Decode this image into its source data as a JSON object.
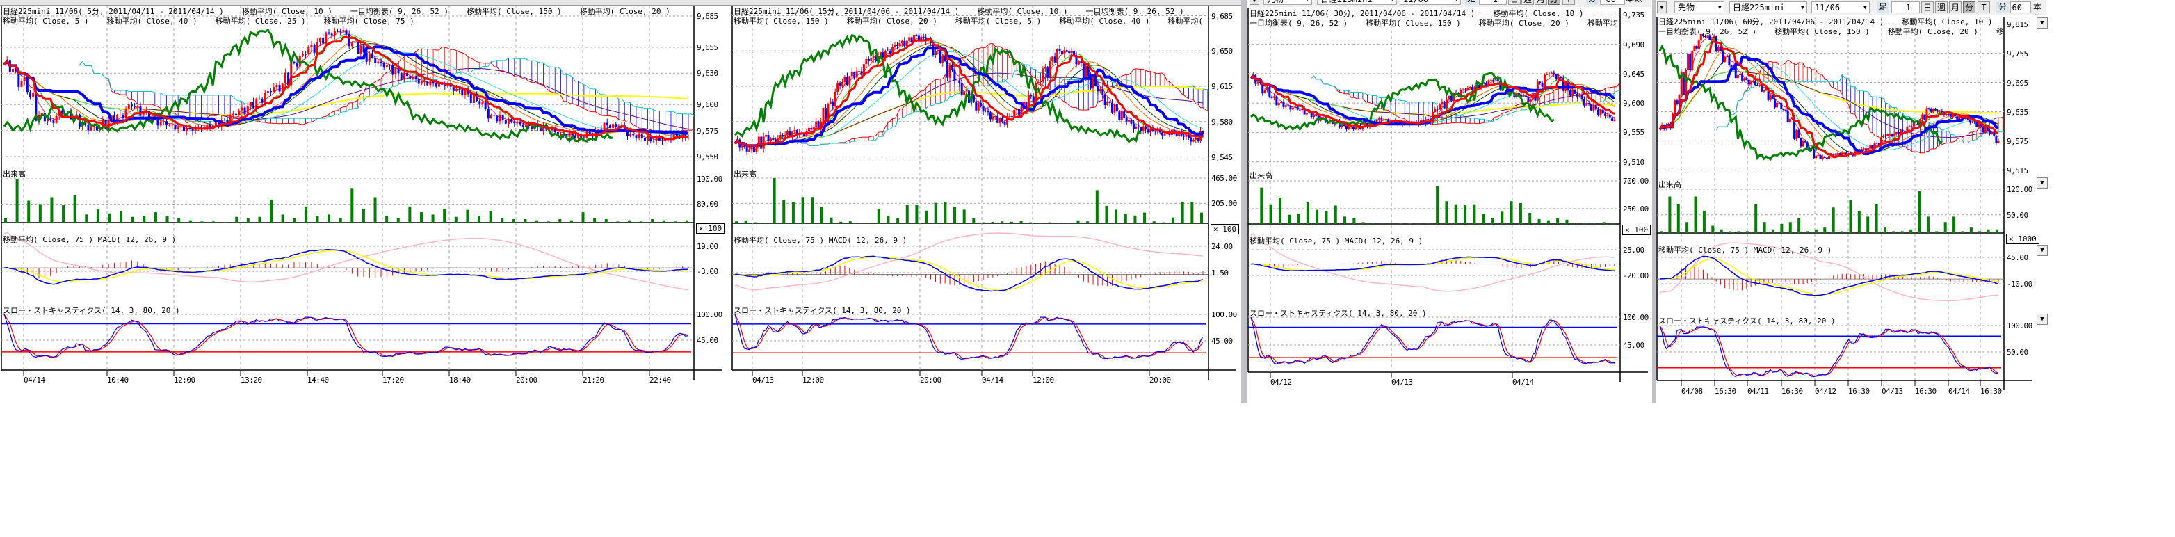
{
  "colors": {
    "up_candle": "#ff0000",
    "down_candle": "#0000ff",
    "tenkan": "#ff0000",
    "kijun": "#0000ff",
    "chikou": "#008000",
    "cloud_a": "#ff0000",
    "cloud_b": "#00cccc",
    "ma5": "#ff3030",
    "ma10": "#00dd00",
    "ma20": "#ff6600",
    "ma25": "#004400",
    "ma40": "#33dddd",
    "ma75": "#5a0a8a",
    "ma150": "#ffff00",
    "volume": "#008000",
    "macd": "#0000ff",
    "signal": "#ffff00",
    "histogram": "#ff0000",
    "macd_ma75": "#ffb6c1",
    "stoch_k": "#0000ff",
    "stoch_d": "#ff0000",
    "overbought_line": "#0000ff",
    "oversold_line": "#ff0000"
  },
  "toolbar": {
    "menu_icon": "dropdown-triangle",
    "market": "先物",
    "product": "日経225mini",
    "contract": "11/06",
    "bar_label": "足",
    "bar_value": "1",
    "buttons": [
      "日",
      "週",
      "月",
      "分",
      "T"
    ],
    "active_button": "分",
    "interval_unit": "分",
    "interval_value": "60",
    "count_label": "本数"
  },
  "panels": [
    {
      "header": {
        "line1": [
          "日経225mini 11/06( 5分, 2011/04/11 - 2011/04/14 )",
          "移動平均( Close, 10 )",
          "一目均衡表( 9, 26, 52 )",
          "移動平均( Close, 150 )",
          "移動平均( Close, 20 )"
        ],
        "line2": [
          "移動平均( Close, 5 )",
          "移動平均( Close, 40 )",
          "移動平均( Close, 25 )",
          "移動平均( Close, 75 )"
        ]
      },
      "volume_label": "出来高",
      "macd_label": "移動平均( Close, 75 )   MACD( 12, 26, 9 )",
      "stoch_label": "スロー・ストキャスティクス( 14, 3, 80, 20 )",
      "volume_multiplier": "× 100",
      "price_ticks": [
        "9,685",
        "9,655",
        "9,630",
        "9,600",
        "9,575",
        "9,550"
      ],
      "volume_ticks": [
        "190.00",
        "80.00"
      ],
      "macd_ticks": [
        "19.00",
        "-3.00"
      ],
      "stoch_ticks": [
        "100.00",
        "45.00"
      ],
      "x_labels": [
        "04/14",
        "10:40",
        "12:00",
        "13:20",
        "14:40",
        "17:20",
        "18:40",
        "20:00",
        "21:20",
        "22:40"
      ],
      "chart_data": {
        "type": "candlestick",
        "closes": [
          9640,
          9632,
          9612,
          9590,
          9585,
          9592,
          9588,
          9580,
          9575,
          9585,
          9590,
          9598,
          9592,
          9585,
          9580,
          9578,
          9576,
          9577,
          9580,
          9585,
          9590,
          9598,
          9605,
          9612,
          9620,
          9640,
          9648,
          9660,
          9668,
          9670,
          9660,
          9650,
          9640,
          9638,
          9630,
          9625,
          9622,
          9620,
          9618,
          9615,
          9610,
          9600,
          9590,
          9585,
          9582,
          9580,
          9578,
          9575,
          9572,
          9570,
          9568,
          9575,
          9580,
          9578,
          9572,
          9568,
          9565,
          9567,
          9570,
          9568
        ],
        "volumes": [
          20,
          190,
          95,
          80,
          110,
          75,
          120,
          35,
          60,
          40,
          50,
          25,
          30,
          45,
          30,
          20,
          10,
          5,
          5,
          2,
          25,
          20,
          25,
          100,
          35,
          20,
          70,
          30,
          35,
          20,
          150,
          60,
          110,
          30,
          20,
          70,
          45,
          35,
          60,
          25,
          55,
          30,
          50,
          20,
          15,
          15,
          10,
          5,
          15,
          10,
          45,
          20,
          15,
          5,
          10,
          5,
          15,
          10,
          5,
          10
        ],
        "price_ylim": [
          9540,
          9695
        ]
      }
    },
    {
      "header": {
        "line1": [
          "日経225mini 11/06( 15分, 2011/04/06 - 2011/04/14 )",
          "移動平均( Close, 10 )",
          "一目均衡表( 9, 26, 52 )"
        ],
        "line2": [
          "移動平均( Close, 150 )",
          "移動平均( Close, 20 )",
          "移動平均( Close, 5 )",
          "移動平均( Close, 40 )",
          "移動平均( Close,"
        ]
      },
      "volume_label": "出来高",
      "macd_label": "移動平均( Close, 75 )   MACD( 12, 26, 9 )",
      "stoch_label": "スロー・ストキャスティクス( 14, 3, 80, 20 )",
      "volume_multiplier": "× 100",
      "price_ticks": [
        "9,685",
        "9,650",
        "9,615",
        "9,580",
        "9,545"
      ],
      "volume_ticks": [
        "465.00",
        "205.00"
      ],
      "macd_ticks": [
        "24.00",
        "1.50"
      ],
      "stoch_ticks": [
        "100.00",
        "45.00"
      ],
      "x_labels": [
        "04/13",
        "12:00",
        "20:00",
        "04/14",
        "12:00",
        "20:00"
      ],
      "chart_data": {
        "type": "candlestick",
        "closes": [
          9560,
          9555,
          9550,
          9565,
          9562,
          9565,
          9570,
          9568,
          9572,
          9580,
          9600,
          9615,
          9625,
          9630,
          9640,
          9645,
          9650,
          9655,
          9660,
          9665,
          9660,
          9650,
          9640,
          9620,
          9610,
          9600,
          9590,
          9585,
          9580,
          9585,
          9595,
          9605,
          9620,
          9640,
          9650,
          9648,
          9640,
          9625,
          9610,
          9600,
          9590,
          9580,
          9575,
          9572,
          9570,
          9568,
          9570,
          9565,
          9562,
          9568
        ],
        "volumes": [
          20,
          30,
          10,
          5,
          465,
          240,
          220,
          270,
          270,
          170,
          60,
          15,
          20,
          5,
          5,
          150,
          80,
          50,
          190,
          190,
          130,
          210,
          220,
          170,
          140,
          50,
          10,
          15,
          20,
          15,
          25,
          10,
          5,
          10,
          5,
          5,
          30,
          20,
          340,
          180,
          140,
          100,
          80,
          110,
          20,
          10,
          60,
          220,
          220,
          110
        ],
        "price_ylim": [
          9535,
          9695
        ]
      }
    },
    {
      "header": {
        "line1": [
          "日経225mini 11/06( 30分, 2011/04/06 - 2011/04/14 )",
          "移動平均( Close, 10 )"
        ],
        "line2": [
          "一目均衡表( 9, 26, 52 )",
          "移動平均( Close, 150 )",
          "移動平均( Close, 20 )",
          "移動平均( Cl"
        ]
      },
      "volume_label": "出来高",
      "macd_label": "移動平均( Close, 75 )   MACD( 12, 26, 9 )",
      "stoch_label": "スロー・ストキャスティクス( 14, 3, 80, 20 )",
      "volume_multiplier": "× 100",
      "price_ticks": [
        "9,735",
        "9,690",
        "9,645",
        "9,600",
        "9,555",
        "9,510"
      ],
      "volume_ticks": [
        "700.00",
        "250.00"
      ],
      "macd_ticks": [
        "25.00",
        "-20.00"
      ],
      "stoch_ticks": [
        "100.00",
        "45.00"
      ],
      "x_labels": [
        "04/12",
        "04/13",
        "04/14"
      ],
      "chart_data": {
        "type": "candlestick",
        "closes": [
          9640,
          9630,
          9610,
          9600,
          9595,
          9590,
          9585,
          9580,
          9572,
          9570,
          9565,
          9560,
          9565,
          9570,
          9575,
          9572,
          9570,
          9568,
          9570,
          9575,
          9590,
          9605,
          9615,
          9620,
          9625,
          9630,
          9635,
          9625,
          9615,
          9610,
          9605,
          9630,
          9645,
          9640,
          9620,
          9610,
          9600,
          9590,
          9580,
          9575
        ],
        "volumes": [
          20,
          590,
          320,
          430,
          150,
          170,
          350,
          230,
          210,
          300,
          120,
          90,
          30,
          20,
          10,
          10,
          5,
          5,
          10,
          10,
          610,
          370,
          320,
          310,
          320,
          160,
          100,
          200,
          370,
          340,
          180,
          80,
          60,
          90,
          70,
          20,
          15,
          20,
          30,
          10
        ],
        "price_ylim": [
          9500,
          9745
        ]
      }
    },
    {
      "header": {
        "line1": [
          "日経225mini 11/06( 60分, 2011/04/06 - 2011/04/14 )",
          "移動平均( Close, 10 )"
        ],
        "line2": [
          "一目均衡表( 9, 26, 52 )",
          "移動平均( Close, 150 )",
          "移動平均( Close, 20 )",
          "移動平"
        ]
      },
      "volume_label": "出来高",
      "macd_label": "移動平均( Close, 75 )   MACD( 12, 26, 9 )",
      "stoch_label": "スロー・ストキャスティクス( 14, 3, 80, 20 )",
      "volume_multiplier": "× 1000",
      "price_ticks": [
        "9,815",
        "9,755",
        "9,695",
        "9,635",
        "9,575",
        "9,515"
      ],
      "volume_ticks": [
        "120.00",
        "50.00"
      ],
      "macd_ticks": [
        "45.00",
        "-10.00"
      ],
      "stoch_ticks": [
        "100.00",
        "50.00"
      ],
      "x_labels": [
        "04/08",
        "16:30",
        "04/11",
        "16:30",
        "04/12",
        "16:30",
        "04/13",
        "16:30",
        "04/14",
        "16:30"
      ],
      "chart_data": {
        "type": "candlestick",
        "closes": [
          9600,
          9610,
          9650,
          9720,
          9770,
          9790,
          9785,
          9760,
          9730,
          9710,
          9700,
          9690,
          9680,
          9660,
          9640,
          9620,
          9580,
          9560,
          9545,
          9540,
          9545,
          9550,
          9548,
          9555,
          9560,
          9570,
          9585,
          9590,
          9595,
          9605,
          9620,
          9640,
          9635,
          9630,
          9625,
          9620,
          9615,
          9605,
          9590,
          9575
        ],
        "volumes": [
          5,
          100,
          80,
          30,
          100,
          60,
          20,
          10,
          5,
          5,
          5,
          80,
          30,
          10,
          25,
          30,
          40,
          5,
          10,
          15,
          70,
          5,
          90,
          60,
          45,
          80,
          15,
          5,
          5,
          10,
          115,
          45,
          5,
          30,
          45,
          5,
          15,
          5,
          10,
          10
        ],
        "price_ylim": [
          9500,
          9830
        ]
      }
    }
  ]
}
